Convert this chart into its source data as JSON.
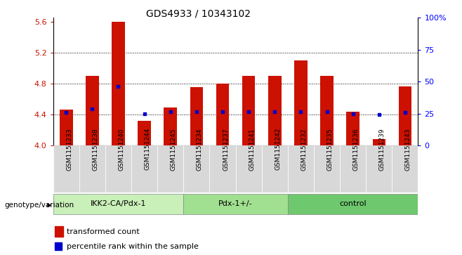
{
  "title": "GDS4933 / 10343102",
  "samples": [
    "GSM1151233",
    "GSM1151238",
    "GSM1151240",
    "GSM1151244",
    "GSM1151245",
    "GSM1151234",
    "GSM1151237",
    "GSM1151241",
    "GSM1151242",
    "GSM1151232",
    "GSM1151235",
    "GSM1151236",
    "GSM1151239",
    "GSM1151243"
  ],
  "bar_values": [
    4.46,
    4.9,
    5.6,
    4.32,
    4.49,
    4.75,
    4.8,
    4.9,
    4.9,
    5.1,
    4.9,
    4.44,
    4.08,
    4.76
  ],
  "percentile_values": [
    4.43,
    4.47,
    4.76,
    4.41,
    4.44,
    4.44,
    4.44,
    4.44,
    4.44,
    4.44,
    4.44,
    4.41,
    4.4,
    4.43
  ],
  "groups": [
    {
      "label": "IKK2-CA/Pdx-1",
      "start": 0,
      "end": 5,
      "color": "#c8f0b8"
    },
    {
      "label": "Pdx-1+/-",
      "start": 5,
      "end": 9,
      "color": "#a0e090"
    },
    {
      "label": "control",
      "start": 9,
      "end": 14,
      "color": "#6ec86e"
    }
  ],
  "ylim": [
    4.0,
    5.65
  ],
  "yticks": [
    4.0,
    4.4,
    4.8,
    5.2,
    5.6
  ],
  "right_yticks": [
    0,
    25,
    50,
    75,
    100
  ],
  "bar_color": "#cc1100",
  "dot_color": "#0000cc",
  "bar_bottom": 4.0,
  "xlabel": "genotype/variation",
  "legend_items": [
    "transformed count",
    "percentile rank within the sample"
  ]
}
